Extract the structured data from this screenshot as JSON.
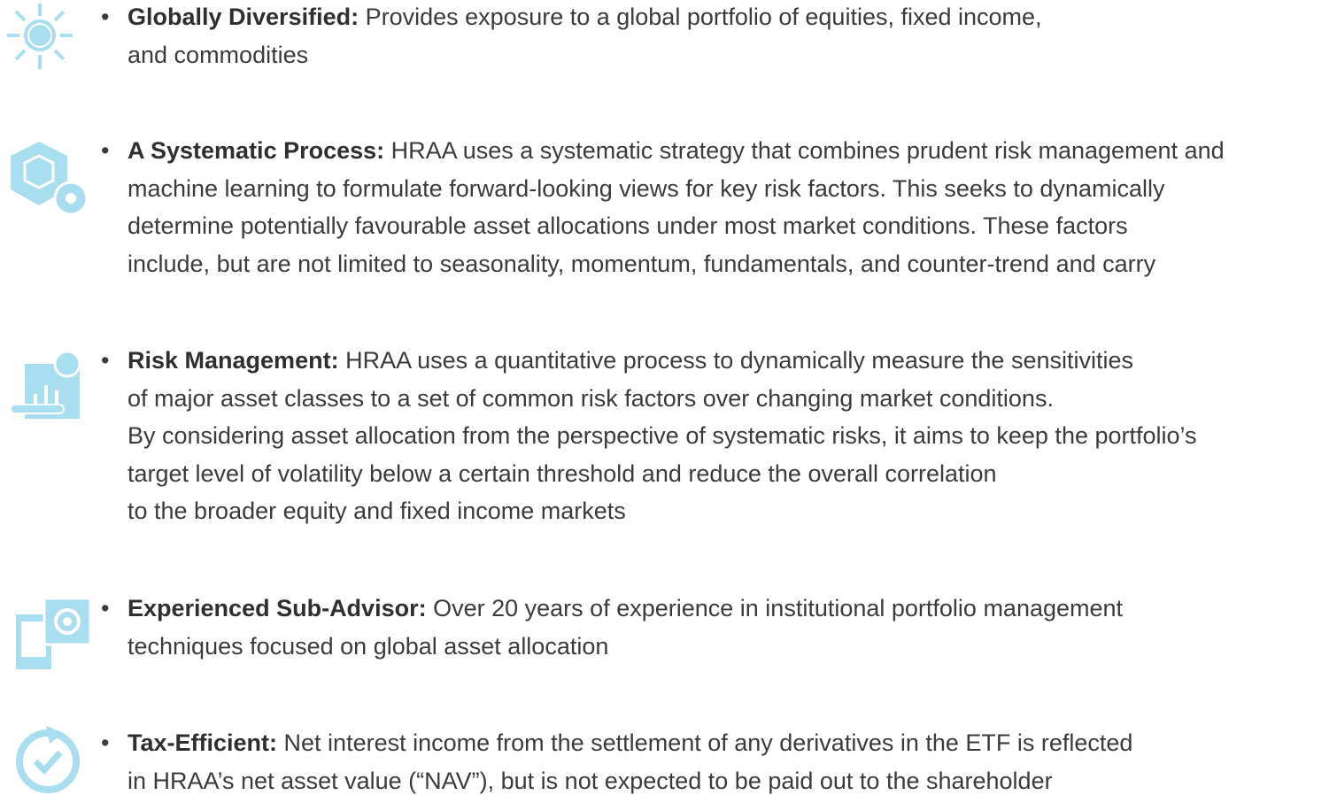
{
  "items": [
    {
      "title": "Globally Diversified:",
      "lines": [
        "Provides exposure to a global portfolio of equities, fixed income,",
        "and commodities"
      ]
    },
    {
      "title": "A Systematic Process:",
      "lines": [
        "HRAA uses a systematic strategy that combines prudent risk management and",
        "machine learning to formulate forward-looking views for key risk factors. This seeks to dynamically",
        "determine potentially favourable asset allocations under most market conditions. These factors",
        "include, but are not limited to seasonality, momentum, fundamentals, and counter-trend and carry"
      ]
    },
    {
      "title": "Risk Management:",
      "lines": [
        "HRAA uses a quantitative process to dynamically measure the sensitivities",
        "of major asset classes to a set of common risk factors over changing market conditions.",
        "By considering asset allocation from the perspective of systematic risks, it aims to keep the portfolio’s",
        "target level of volatility below a certain threshold and reduce the overall correlation",
        "to the broader equity and fixed income markets"
      ]
    },
    {
      "title": "Experienced Sub-Advisor:",
      "lines": [
        "Over 20 years of experience in institutional portfolio management",
        "techniques focused on global asset allocation"
      ]
    },
    {
      "title": "Tax-Efficient:",
      "lines": [
        "Net interest income from the settlement of any derivatives in the ETF is reflected",
        "in HRAA’s net asset value (“NAV”), but is not expected to be paid out to the shareholder"
      ]
    }
  ]
}
